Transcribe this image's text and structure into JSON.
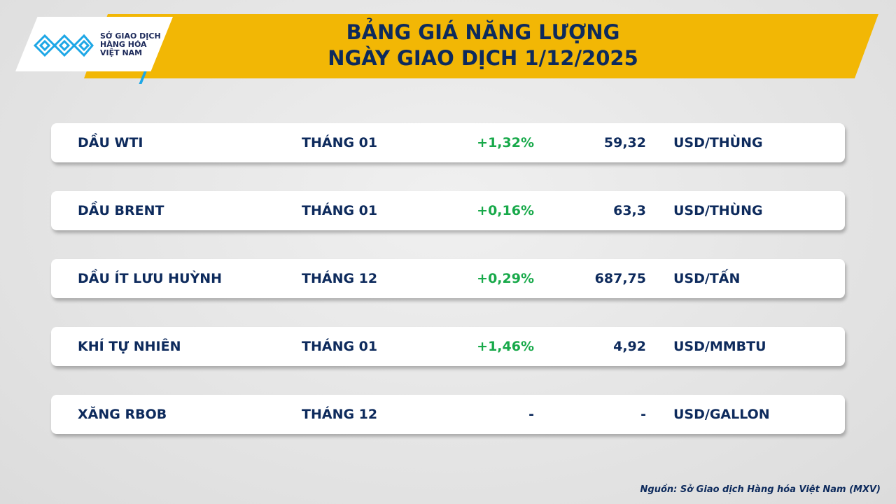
{
  "logo": {
    "lines": [
      "SỞ GIAO DỊCH",
      "HÀNG HÓA",
      "VIỆT NAM"
    ]
  },
  "header": {
    "title_line1": "BẢNG GIÁ NĂNG LƯỢNG",
    "title_line2": "NGÀY GIAO DỊCH 1/12/2025"
  },
  "rows": [
    {
      "name": "DẦU WTI",
      "month": "THÁNG 01",
      "change": "+1,32%",
      "price": "59,32",
      "unit": "USD/THÙNG"
    },
    {
      "name": "DẦU BRENT",
      "month": "THÁNG 01",
      "change": "+0,16%",
      "price": "63,3",
      "unit": "USD/THÙNG"
    },
    {
      "name": "DẦU ÍT LƯU HUỲNH",
      "month": "THÁNG 12",
      "change": "+0,29%",
      "price": "687,75",
      "unit": "USD/TẤN"
    },
    {
      "name": "KHÍ TỰ NHIÊN",
      "month": "THÁNG 01",
      "change": "+1,46%",
      "price": "4,92",
      "unit": "USD/MMBTU"
    },
    {
      "name": "XĂNG RBOB",
      "month": "THÁNG 12",
      "change": "-",
      "price": "-",
      "unit": "USD/GALLON"
    }
  ],
  "colors": {
    "banner": "#f2b705",
    "text": "#0d2a5c",
    "positive": "#18a94a",
    "logo_blue": "#1ea7e6"
  },
  "source": "Nguồn: Sở Giao dịch Hàng hóa Việt Nam (MXV)"
}
